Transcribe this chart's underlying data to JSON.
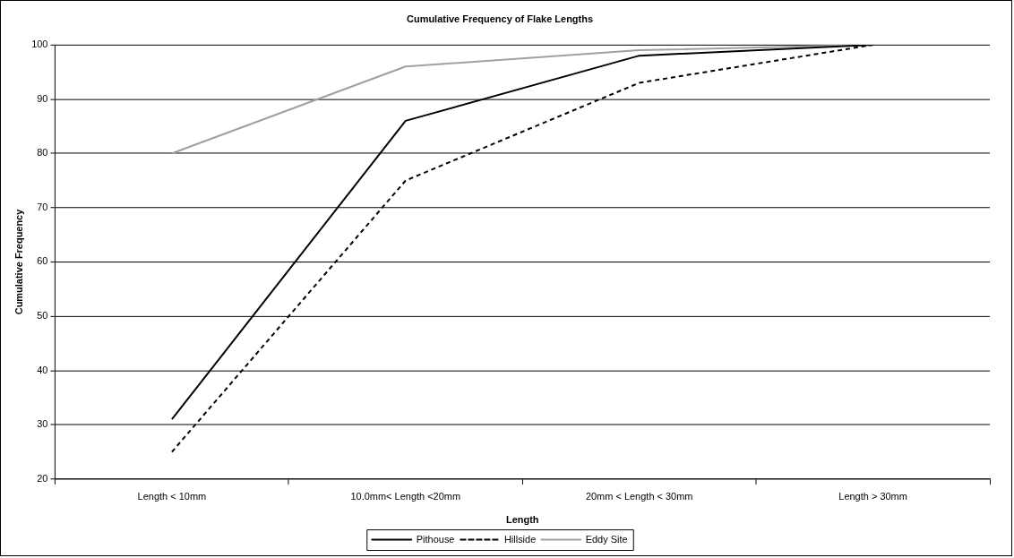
{
  "chart_data": {
    "type": "line",
    "title": "Cumulative Frequency of Flake Lengths",
    "xlabel": "Length",
    "ylabel": "Cumulative Frequency",
    "categories": [
      "Length < 10mm",
      "10.0mm< Length <20mm",
      "20mm < Length < 30mm",
      "Length > 30mm"
    ],
    "series": [
      {
        "name": "Pithouse",
        "color": "#000000",
        "line_style": "solid",
        "values": [
          31,
          86,
          98,
          100
        ]
      },
      {
        "name": "Hillside",
        "color": "#000000",
        "line_style": "dashed",
        "values": [
          25,
          75,
          93,
          100
        ]
      },
      {
        "name": "Eddy Site",
        "color": "#a0a0a0",
        "line_style": "solid",
        "values": [
          80,
          96,
          99,
          100
        ]
      }
    ],
    "ylim": [
      20,
      100
    ],
    "yticks": [
      20,
      30,
      40,
      50,
      60,
      70,
      80,
      90,
      100
    ],
    "grid": "y",
    "legend": "bottom",
    "marker": "none"
  }
}
